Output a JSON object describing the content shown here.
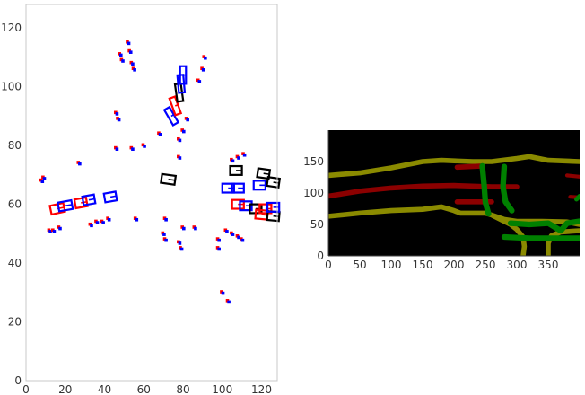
{
  "chart_data": [
    {
      "type": "scatter",
      "title": "",
      "xlabel": "",
      "ylabel": "",
      "xlim": [
        0,
        128
      ],
      "ylim": [
        0,
        128
      ],
      "xticks": [
        0,
        20,
        40,
        60,
        80,
        100,
        120
      ],
      "yticks": [
        0,
        20,
        40,
        60,
        80,
        100,
        120
      ],
      "grid": false,
      "point_colors": [
        "#ff0000",
        "#0000ff"
      ],
      "box_colors": {
        "prediction": "#000000",
        "ground_truth": "#ff0000",
        "alternate": "#0000ff"
      },
      "points": [
        [
          8,
          68
        ],
        [
          9,
          69
        ],
        [
          12,
          51
        ],
        [
          14,
          51
        ],
        [
          17,
          52
        ],
        [
          27,
          74
        ],
        [
          33,
          53
        ],
        [
          36,
          54
        ],
        [
          39,
          54
        ],
        [
          42,
          55
        ],
        [
          46,
          79
        ],
        [
          46,
          91
        ],
        [
          47,
          89
        ],
        [
          48,
          111
        ],
        [
          49,
          109
        ],
        [
          52,
          115
        ],
        [
          53,
          112
        ],
        [
          54,
          108
        ],
        [
          55,
          106
        ],
        [
          54,
          79
        ],
        [
          56,
          55
        ],
        [
          60,
          80
        ],
        [
          68,
          84
        ],
        [
          70,
          50
        ],
        [
          71,
          48
        ],
        [
          71,
          55
        ],
        [
          78,
          76
        ],
        [
          78,
          47
        ],
        [
          79,
          45
        ],
        [
          80,
          52
        ],
        [
          78,
          82
        ],
        [
          80,
          85
        ],
        [
          82,
          89
        ],
        [
          86,
          52
        ],
        [
          88,
          102
        ],
        [
          90,
          106
        ],
        [
          91,
          110
        ],
        [
          98,
          48
        ],
        [
          98,
          45
        ],
        [
          100,
          30
        ],
        [
          103,
          27
        ],
        [
          102,
          51
        ],
        [
          105,
          50
        ],
        [
          108,
          49
        ],
        [
          110,
          48
        ],
        [
          105,
          75
        ],
        [
          108,
          76
        ],
        [
          111,
          77
        ]
      ],
      "boxes": [
        {
          "cx": 16,
          "cy": 58.5,
          "w": 7,
          "h": 3,
          "angle": 12,
          "color": "#ff0000"
        },
        {
          "cx": 20,
          "cy": 59.5,
          "w": 7,
          "h": 3,
          "angle": 10,
          "color": "#0000ff"
        },
        {
          "cx": 28,
          "cy": 60.5,
          "w": 6,
          "h": 3,
          "angle": 10,
          "color": "#ff0000"
        },
        {
          "cx": 32,
          "cy": 61.5,
          "w": 6,
          "h": 3,
          "angle": 10,
          "color": "#0000ff"
        },
        {
          "cx": 43,
          "cy": 62.5,
          "w": 6,
          "h": 3,
          "angle": 10,
          "color": "#0000ff"
        },
        {
          "cx": 72.5,
          "cy": 68.5,
          "w": 7,
          "h": 3,
          "angle": -8,
          "color": "#000000"
        },
        {
          "cx": 74,
          "cy": 90,
          "w": 3,
          "h": 6,
          "angle": 30,
          "color": "#0000ff"
        },
        {
          "cx": 76,
          "cy": 93.5,
          "w": 3,
          "h": 6,
          "angle": 20,
          "color": "#ff0000"
        },
        {
          "cx": 78,
          "cy": 98,
          "w": 3,
          "h": 6,
          "angle": 8,
          "color": "#000000"
        },
        {
          "cx": 79,
          "cy": 101,
          "w": 3,
          "h": 6,
          "angle": 5,
          "color": "#0000ff"
        },
        {
          "cx": 80,
          "cy": 104,
          "w": 3,
          "h": 6,
          "angle": 0,
          "color": "#0000ff"
        },
        {
          "cx": 103,
          "cy": 65.5,
          "w": 6,
          "h": 3,
          "angle": 0,
          "color": "#0000ff"
        },
        {
          "cx": 108,
          "cy": 65.5,
          "w": 6,
          "h": 3,
          "angle": 0,
          "color": "#0000ff"
        },
        {
          "cx": 107,
          "cy": 71.5,
          "w": 6,
          "h": 3,
          "angle": 0,
          "color": "#000000"
        },
        {
          "cx": 121,
          "cy": 70.5,
          "w": 6,
          "h": 3,
          "angle": -8,
          "color": "#000000"
        },
        {
          "cx": 119,
          "cy": 66.5,
          "w": 6,
          "h": 3,
          "angle": 0,
          "color": "#0000ff"
        },
        {
          "cx": 126,
          "cy": 67.5,
          "w": 6,
          "h": 3,
          "angle": -8,
          "color": "#000000"
        },
        {
          "cx": 108,
          "cy": 60,
          "w": 6,
          "h": 3,
          "angle": 0,
          "color": "#ff0000"
        },
        {
          "cx": 112,
          "cy": 59.5,
          "w": 6,
          "h": 3,
          "angle": 0,
          "color": "#0000ff"
        },
        {
          "cx": 117,
          "cy": 58.5,
          "w": 6,
          "h": 3,
          "angle": 0,
          "color": "#000000"
        },
        {
          "cx": 122,
          "cy": 58.5,
          "w": 6,
          "h": 3,
          "angle": 0,
          "color": "#ff0000"
        },
        {
          "cx": 120,
          "cy": 56.5,
          "w": 6,
          "h": 3,
          "angle": -5,
          "color": "#ff0000"
        },
        {
          "cx": 126,
          "cy": 56,
          "w": 6,
          "h": 3,
          "angle": -5,
          "color": "#000000"
        },
        {
          "cx": 126,
          "cy": 59,
          "w": 6,
          "h": 3,
          "angle": 0,
          "color": "#0000ff"
        }
      ]
    },
    {
      "type": "heatmap",
      "title": "",
      "xlabel": "",
      "ylabel": "",
      "xlim": [
        0,
        400
      ],
      "ylim": [
        0,
        200
      ],
      "xticks": [
        0,
        50,
        100,
        150,
        200,
        250,
        300,
        350
      ],
      "yticks": [
        0,
        50,
        100,
        150
      ],
      "background": "#000000",
      "class_colors": {
        "road_boundary": "#8a8a00",
        "lane_divider": "#8b0000",
        "crosswalk": "#008000"
      },
      "polylines": [
        {
          "class": "road_boundary",
          "width": 8,
          "pts": [
            [
              0,
              128
            ],
            [
              50,
              132
            ],
            [
              100,
              140
            ],
            [
              150,
              150
            ],
            [
              180,
              152
            ],
            [
              230,
              150
            ],
            [
              260,
              150
            ],
            [
              300,
              155
            ],
            [
              320,
              158
            ],
            [
              350,
              152
            ],
            [
              400,
              150
            ]
          ]
        },
        {
          "class": "road_boundary",
          "width": 8,
          "pts": [
            [
              0,
              63
            ],
            [
              50,
              68
            ],
            [
              100,
              72
            ],
            [
              150,
              74
            ],
            [
              180,
              78
            ],
            [
              200,
              72
            ],
            [
              210,
              68
            ],
            [
              250,
              68
            ],
            [
              260,
              65
            ],
            [
              280,
              58
            ],
            [
              300,
              55
            ],
            [
              340,
              55
            ],
            [
              380,
              54
            ],
            [
              400,
              50
            ]
          ]
        },
        {
          "class": "road_boundary",
          "width": 8,
          "pts": [
            [
              262,
              64
            ],
            [
              290,
              50
            ],
            [
              300,
              42
            ],
            [
              310,
              30
            ],
            [
              312,
              15
            ],
            [
              310,
              0
            ]
          ]
        },
        {
          "class": "road_boundary",
          "width": 8,
          "pts": [
            [
              400,
              40
            ],
            [
              370,
              38
            ],
            [
              355,
              32
            ],
            [
              350,
              20
            ],
            [
              350,
              0
            ]
          ]
        },
        {
          "class": "lane_divider",
          "width": 8,
          "pts": [
            [
              0,
              95
            ],
            [
              50,
              103
            ],
            [
              100,
              108
            ],
            [
              150,
              111
            ],
            [
              200,
              112
            ],
            [
              260,
              110
            ],
            [
              300,
              110
            ]
          ]
        },
        {
          "class": "lane_divider",
          "width": 8,
          "pts": [
            [
              205,
              86
            ],
            [
              260,
              86
            ]
          ]
        },
        {
          "class": "lane_divider",
          "width": 8,
          "pts": [
            [
              205,
              141
            ],
            [
              245,
              143
            ]
          ]
        },
        {
          "class": "lane_divider",
          "width": 6,
          "pts": [
            [
              380,
              128
            ],
            [
              400,
              126
            ]
          ]
        },
        {
          "class": "lane_divider",
          "width": 6,
          "pts": [
            [
              385,
              94
            ],
            [
              400,
              93
            ]
          ]
        },
        {
          "class": "crosswalk",
          "width": 9,
          "pts": [
            [
              245,
              143
            ],
            [
              248,
              112
            ],
            [
              250,
              85
            ],
            [
              255,
              67
            ]
          ]
        },
        {
          "class": "crosswalk",
          "width": 9,
          "pts": [
            [
              280,
              142
            ],
            [
              278,
              110
            ],
            [
              282,
              86
            ],
            [
              292,
              72
            ]
          ]
        },
        {
          "class": "crosswalk",
          "width": 9,
          "pts": [
            [
              280,
              30
            ],
            [
              320,
              28
            ],
            [
              370,
              28
            ],
            [
              400,
              28
            ]
          ]
        },
        {
          "class": "crosswalk",
          "width": 9,
          "pts": [
            [
              290,
              52
            ],
            [
              320,
              50
            ],
            [
              350,
              52
            ],
            [
              370,
              40
            ],
            [
              380,
              52
            ],
            [
              400,
              55
            ]
          ]
        },
        {
          "class": "crosswalk",
          "width": 7,
          "pts": [
            [
              395,
              90
            ],
            [
              400,
              95
            ]
          ]
        }
      ]
    }
  ]
}
